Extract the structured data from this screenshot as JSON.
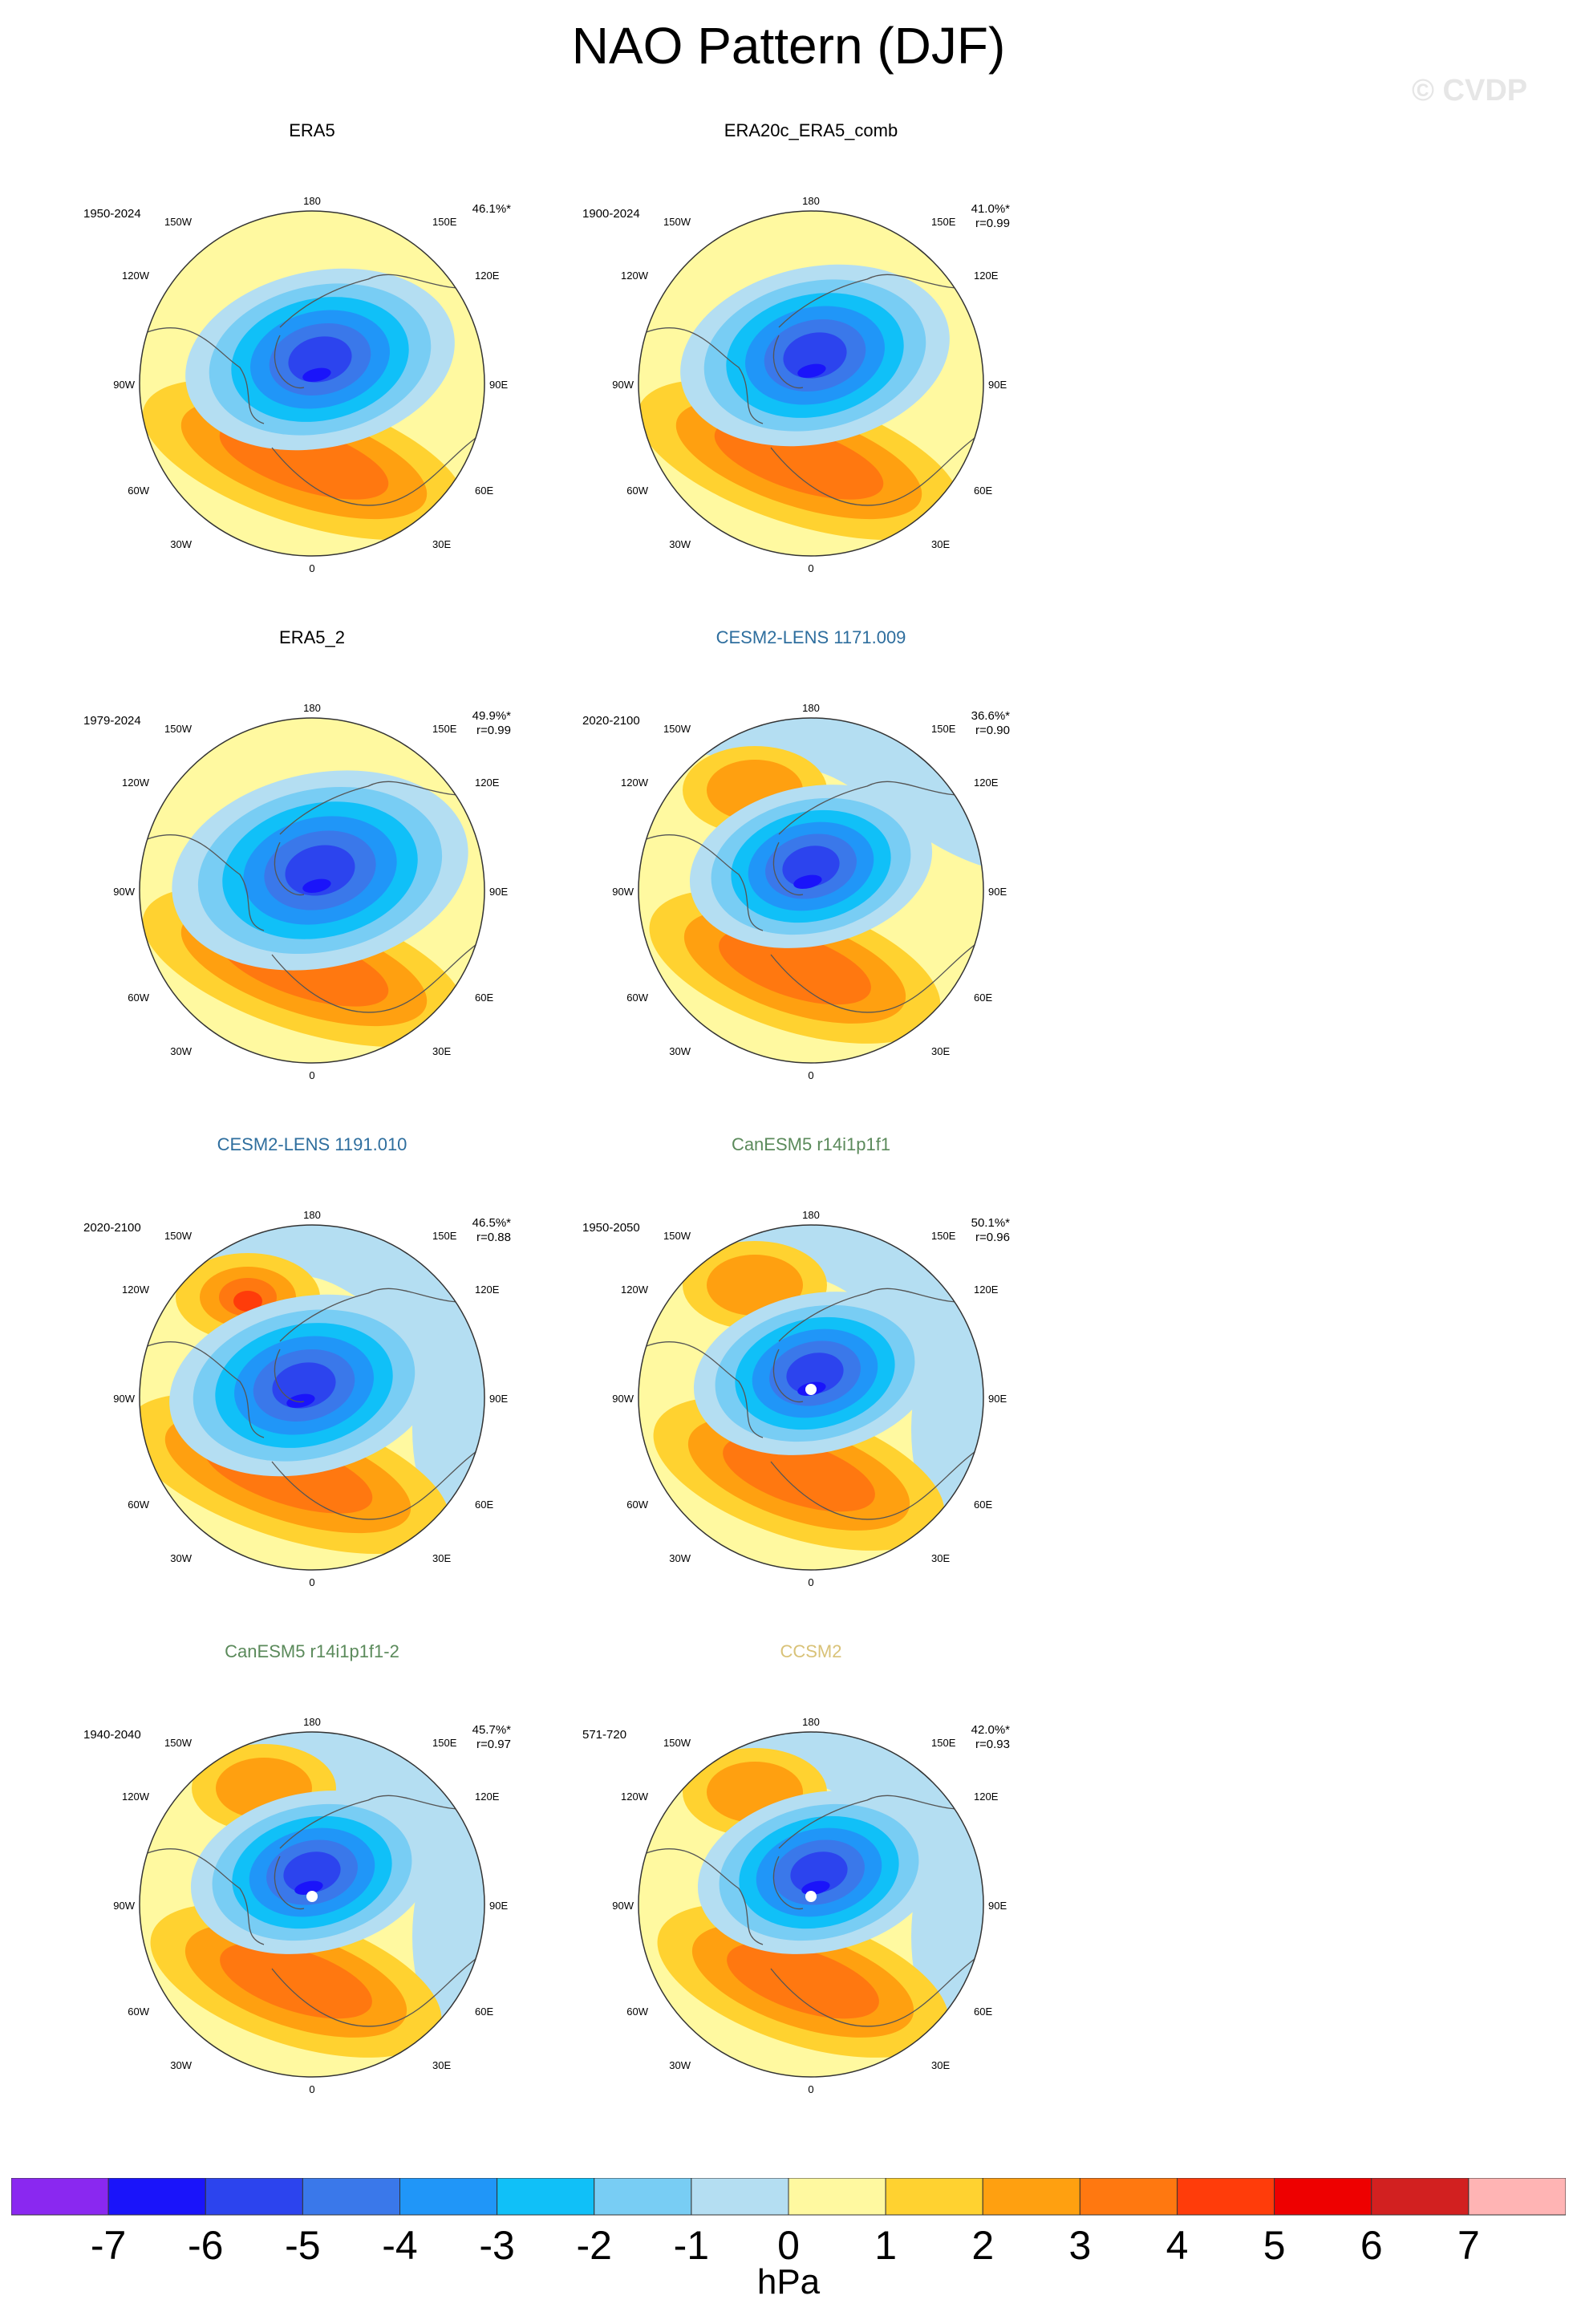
{
  "title": "NAO Pattern (DJF)",
  "watermark": "© CVDP",
  "unit_label": "hPa",
  "colors": {
    "title_blue": "#2e6e9e",
    "title_green": "#5b8a5b",
    "title_tan": "#d9c278"
  },
  "colorbar": {
    "levels": [
      "-7",
      "-6",
      "-5",
      "-4",
      "-3",
      "-2",
      "-1",
      "0",
      "1",
      "2",
      "3",
      "4",
      "5",
      "6",
      "7"
    ],
    "colors": [
      "#8a28f0",
      "#1a14fa",
      "#2c44ee",
      "#3a78ea",
      "#2096f8",
      "#10c0f8",
      "#78cdf4",
      "#b4def2",
      "#fff9a0",
      "#ffd230",
      "#ffa010",
      "#ff7810",
      "#ff3c0a",
      "#ee0000",
      "#d22020",
      "#ffb4b4"
    ]
  },
  "axis_labels": {
    "top": "180",
    "bottom": "0",
    "upper_left": "150W",
    "upper_right": "150E",
    "left_upper": "120W",
    "right_upper": "120E",
    "left": "90W",
    "right": "90E",
    "left_lower": "60W",
    "right_lower": "60E",
    "lower_left": "30W",
    "lower_right": "30E"
  },
  "chart_data": [
    {
      "type": "heatmap",
      "title": "ERA5",
      "title_color": "black",
      "years": "1950-2024",
      "stats": "46.1%*",
      "corr": ""
    },
    {
      "type": "heatmap",
      "title": "ERA20c_ERA5_comb",
      "title_color": "black",
      "years": "1900-2024",
      "stats": "41.0%*",
      "corr": "r=0.99"
    },
    {
      "type": "heatmap",
      "title": "ERA5_2",
      "title_color": "black",
      "years": "1979-2024",
      "stats": "49.9%*",
      "corr": "r=0.99"
    },
    {
      "type": "heatmap",
      "title": "CESM2-LENS 1171.009",
      "title_color": "blue",
      "years": "2020-2100",
      "stats": "36.6%*",
      "corr": "r=0.90"
    },
    {
      "type": "heatmap",
      "title": "CESM2-LENS 1191.010",
      "title_color": "blue",
      "years": "2020-2100",
      "stats": "46.5%*",
      "corr": "r=0.88"
    },
    {
      "type": "heatmap",
      "title": "CanESM5 r14i1p1f1",
      "title_color": "green",
      "years": "1950-2050",
      "stats": "50.1%*",
      "corr": "r=0.96"
    },
    {
      "type": "heatmap",
      "title": "CanESM5 r14i1p1f1-2",
      "title_color": "green",
      "years": "1940-2040",
      "stats": "45.7%*",
      "corr": "r=0.97"
    },
    {
      "type": "heatmap",
      "title": "CCSM2",
      "title_color": "tan",
      "years": "571-720",
      "stats": "42.0%*",
      "corr": "r=0.93"
    }
  ]
}
